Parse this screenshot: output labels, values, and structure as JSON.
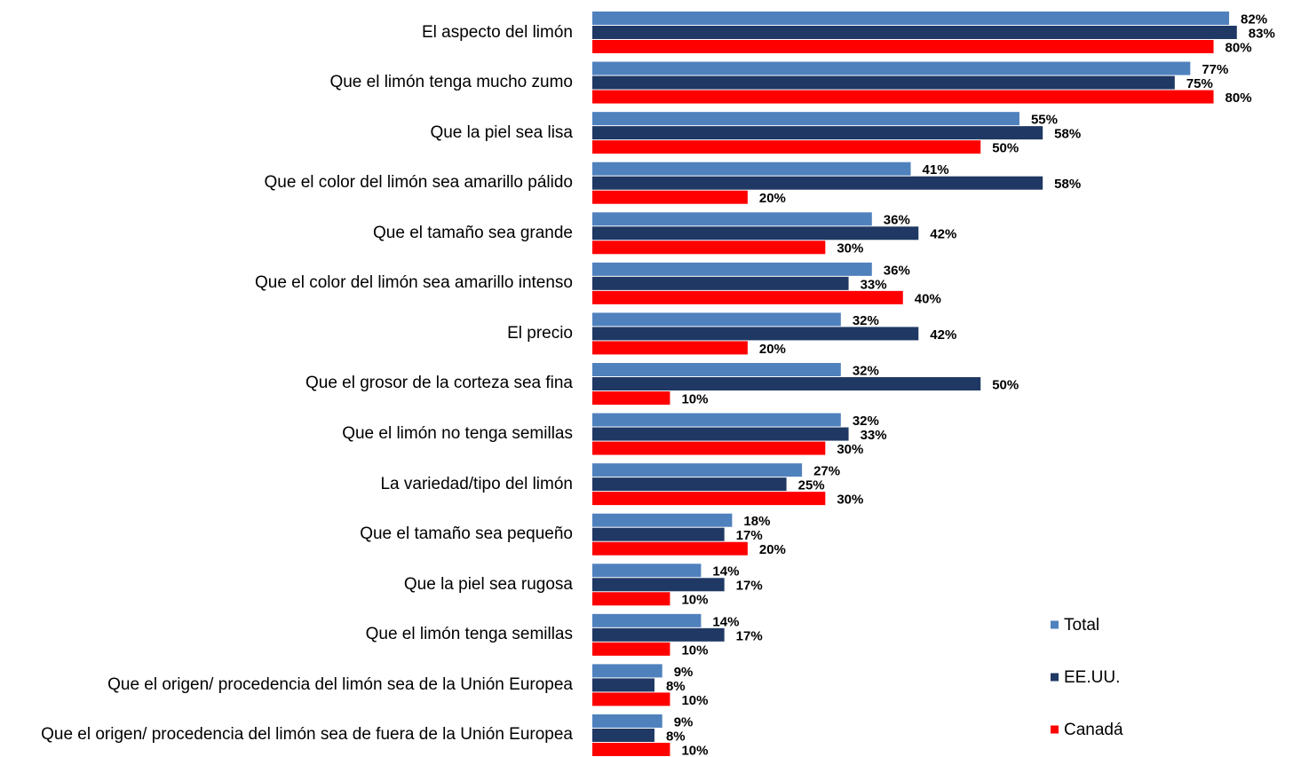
{
  "chart_data": {
    "type": "hbar",
    "categories": [
      "El aspecto del limón",
      "Que el limón tenga mucho zumo",
      "Que la piel sea lisa",
      "Que el color del limón sea amarillo pálido",
      "Que el tamaño sea grande",
      "Que el color del limón sea amarillo intenso",
      "El precio",
      "Que el grosor de la corteza sea fina",
      "Que el limón no tenga semillas",
      "La variedad/tipo del limón",
      "Que el tamaño sea pequeño",
      "Que la piel sea rugosa",
      "Que el limón tenga semillas",
      "Que el origen/ procedencia del limón sea de la Unión Europea",
      "Que el origen/ procedencia del limón sea de fuera de la Unión Europea"
    ],
    "series": [
      {
        "name": "Total",
        "color": "#4f81bd",
        "values": [
          82,
          77,
          55,
          41,
          36,
          36,
          32,
          32,
          32,
          27,
          18,
          14,
          14,
          9,
          9
        ],
        "value_labels": [
          "82%",
          "77%",
          "55%",
          "41%",
          "36%",
          "36%",
          "32%",
          "32%",
          "32%",
          "27%",
          "18%",
          "14%",
          "14%",
          "9%",
          "9%"
        ]
      },
      {
        "name": "EE.UU.",
        "color": "#1f3864",
        "values": [
          83,
          75,
          58,
          58,
          42,
          33,
          42,
          50,
          33,
          25,
          17,
          17,
          17,
          8,
          8
        ],
        "value_labels": [
          "83%",
          "75%",
          "58%",
          "58%",
          "42%",
          "33%",
          "42%",
          "50%",
          "33%",
          "25%",
          "17%",
          "17%",
          "17%",
          "8%",
          "8%"
        ]
      },
      {
        "name": "Canadá",
        "color": "#ff0000",
        "values": [
          80,
          80,
          50,
          20,
          30,
          40,
          20,
          10,
          30,
          30,
          20,
          10,
          10,
          10,
          10
        ],
        "value_labels": [
          "80%",
          "80%",
          "50%",
          "20%",
          "30%",
          "40%",
          "20%",
          "10%",
          "30%",
          "30%",
          "20%",
          "10%",
          "10%",
          "10%",
          "10%"
        ]
      }
    ],
    "xlim": [
      0,
      90
    ],
    "legend": "right"
  }
}
